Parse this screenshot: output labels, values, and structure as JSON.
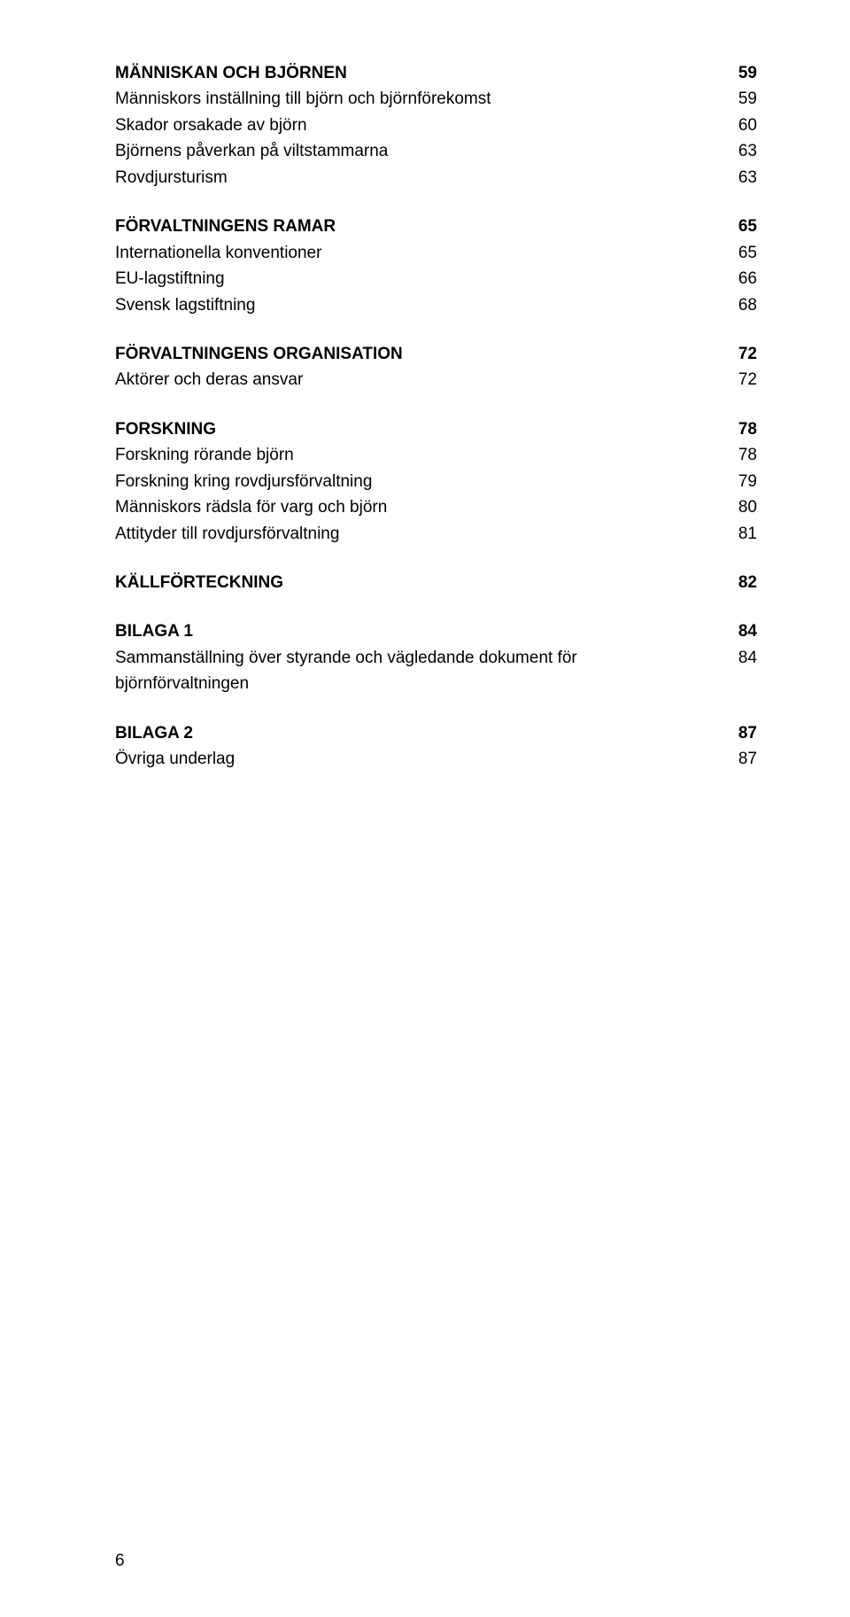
{
  "sections": [
    {
      "rows": [
        {
          "label": "MÄNNISKAN OCH BJÖRNEN",
          "page": "59",
          "bold": true
        },
        {
          "label": "Människors inställning till björn och björnförekomst",
          "page": "59",
          "bold": false
        },
        {
          "label": "Skador orsakade av björn",
          "page": "60",
          "bold": false
        },
        {
          "label": "Björnens påverkan på viltstammarna",
          "page": "63",
          "bold": false
        },
        {
          "label": "Rovdjursturism",
          "page": "63",
          "bold": false
        }
      ]
    },
    {
      "rows": [
        {
          "label": "FÖRVALTNINGENS RAMAR",
          "page": "65",
          "bold": true
        },
        {
          "label": "Internationella konventioner",
          "page": "65",
          "bold": false
        },
        {
          "label": "EU-lagstiftning",
          "page": "66",
          "bold": false
        },
        {
          "label": "Svensk lagstiftning",
          "page": "68",
          "bold": false
        }
      ]
    },
    {
      "rows": [
        {
          "label": "FÖRVALTNINGENS ORGANISATION",
          "page": "72",
          "bold": true
        },
        {
          "label": "Aktörer och deras ansvar",
          "page": "72",
          "bold": false
        }
      ]
    },
    {
      "rows": [
        {
          "label": "FORSKNING",
          "page": "78",
          "bold": true
        },
        {
          "label": "Forskning rörande björn",
          "page": "78",
          "bold": false
        },
        {
          "label": "Forskning kring rovdjursförvaltning",
          "page": "79",
          "bold": false
        },
        {
          "label": "Människors rädsla för varg och björn",
          "page": "80",
          "bold": false
        },
        {
          "label": "Attityder till rovdjursförvaltning",
          "page": "81",
          "bold": false
        }
      ]
    },
    {
      "rows": [
        {
          "label": "KÄLLFÖRTECKNING",
          "page": "82",
          "bold": true
        }
      ]
    },
    {
      "rows": [
        {
          "label": "BILAGA 1",
          "page": "84",
          "bold": true
        },
        {
          "label": "Sammanställning över styrande och vägledande dokument för björnförvaltningen",
          "page": "84",
          "bold": false
        }
      ]
    },
    {
      "rows": [
        {
          "label": "BILAGA 2",
          "page": "87",
          "bold": true
        },
        {
          "label": "Övriga underlag",
          "page": "87",
          "bold": false
        }
      ]
    }
  ],
  "footer_page_number": "6"
}
